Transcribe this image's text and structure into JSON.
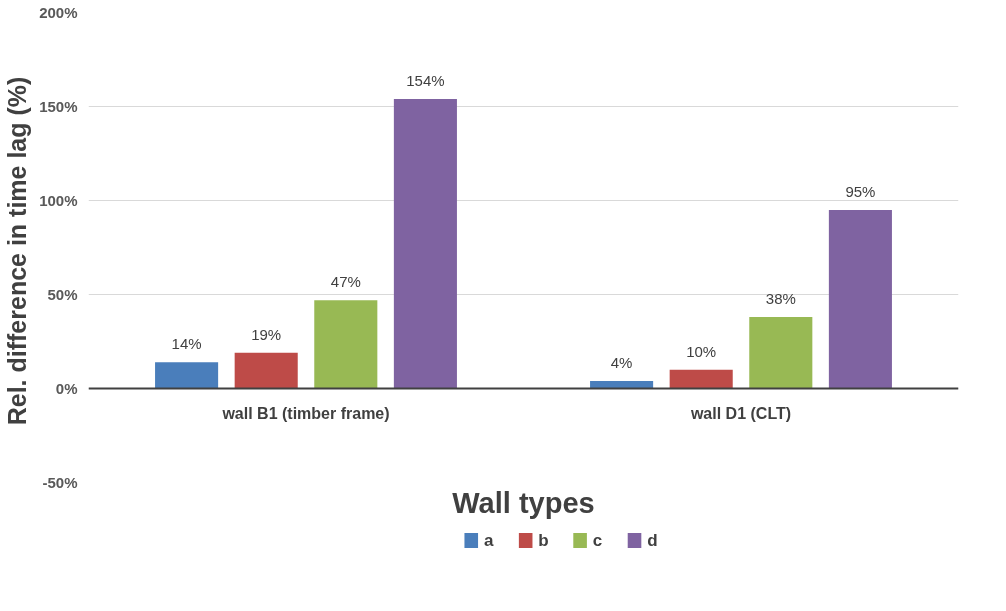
{
  "chart_data": {
    "type": "bar",
    "ylabel": "Rel. difference in time lag  (%)",
    "xlabel": "Wall types",
    "categories": [
      "wall B1 (timber frame)",
      "wall D1 (CLT)"
    ],
    "series": [
      {
        "name": "a",
        "color": "#4a7ebb",
        "values": [
          14,
          4
        ],
        "value_labels": [
          "14%",
          "4%"
        ]
      },
      {
        "name": "b",
        "color": "#be4b48",
        "values": [
          19,
          10
        ],
        "value_labels": [
          "19%",
          "10%"
        ]
      },
      {
        "name": "c",
        "color": "#98b954",
        "values": [
          47,
          38
        ],
        "value_labels": [
          "47%",
          "38%"
        ]
      },
      {
        "name": "d",
        "color": "#7f63a1",
        "values": [
          154,
          95
        ],
        "value_labels": [
          "154%",
          "95%"
        ]
      }
    ],
    "ylim": [
      -50,
      200
    ],
    "yticks": [
      {
        "value": -50,
        "label": "-50%"
      },
      {
        "value": 0,
        "label": "0%"
      },
      {
        "value": 50,
        "label": "50%"
      },
      {
        "value": 100,
        "label": "100%"
      },
      {
        "value": 150,
        "label": "150%"
      },
      {
        "value": 200,
        "label": "200%"
      }
    ],
    "grid": "y",
    "legend": "bottom"
  }
}
